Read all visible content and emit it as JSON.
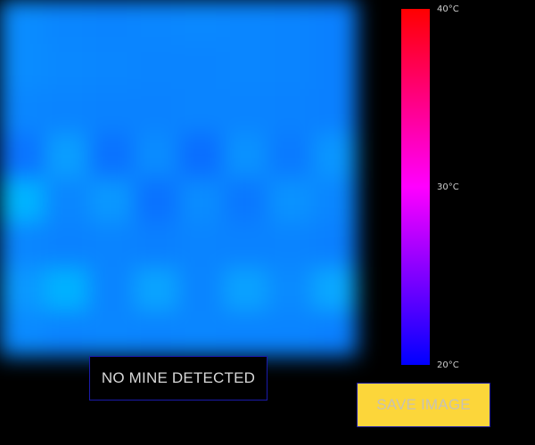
{
  "thermal_view": {
    "grid_rows": 8,
    "grid_cols": 8,
    "cell_colors": [
      [
        "#0a8cff",
        "#0a86ff",
        "#0a84ff",
        "#0a86ff",
        "#0a88ff",
        "#0a86ff",
        "#0a84ff",
        "#0a80ff"
      ],
      [
        "#0a8cff",
        "#0a88ff",
        "#0a86ff",
        "#0a84ff",
        "#0a84ff",
        "#0a86ff",
        "#0a84ff",
        "#0a80ff"
      ],
      [
        "#0a86ff",
        "#0a84ff",
        "#0a82ff",
        "#0a82ff",
        "#0a84ff",
        "#0a84ff",
        "#0a82ff",
        "#0a80ff"
      ],
      [
        "#0a74ff",
        "#0a9eff",
        "#0a72ff",
        "#0a8cff",
        "#0a6eff",
        "#0a92ff",
        "#0a7aff",
        "#0a96ff"
      ],
      [
        "#00b4ff",
        "#0a86ff",
        "#0a98ff",
        "#0a72ff",
        "#0a8cff",
        "#0a78ff",
        "#0a92ff",
        "#0a86ff"
      ],
      [
        "#0a86ff",
        "#0a82ff",
        "#0a84ff",
        "#0a80ff",
        "#0a84ff",
        "#0a82ff",
        "#0a84ff",
        "#0a80ff"
      ],
      [
        "#0a98ff",
        "#00b2ff",
        "#0a84ff",
        "#0aa4ff",
        "#0a84ff",
        "#0aa2ff",
        "#0a8aff",
        "#0aa8ff"
      ],
      [
        "#0a8aff",
        "#0a84ff",
        "#0a86ff",
        "#0a84ff",
        "#0a86ff",
        "#0a84ff",
        "#0a84ff",
        "#0a80ff"
      ]
    ]
  },
  "color_scale": {
    "max_label": "40°C",
    "mid_label": "30°C",
    "min_label": "20°C",
    "colors": {
      "hot": "#ff0000",
      "mid": "#ff00ff",
      "cold": "#0000ff"
    }
  },
  "status": {
    "text": "NO MINE DETECTED"
  },
  "actions": {
    "save_label": "SAVE IMAGE",
    "save_color": "#fcd63a"
  }
}
